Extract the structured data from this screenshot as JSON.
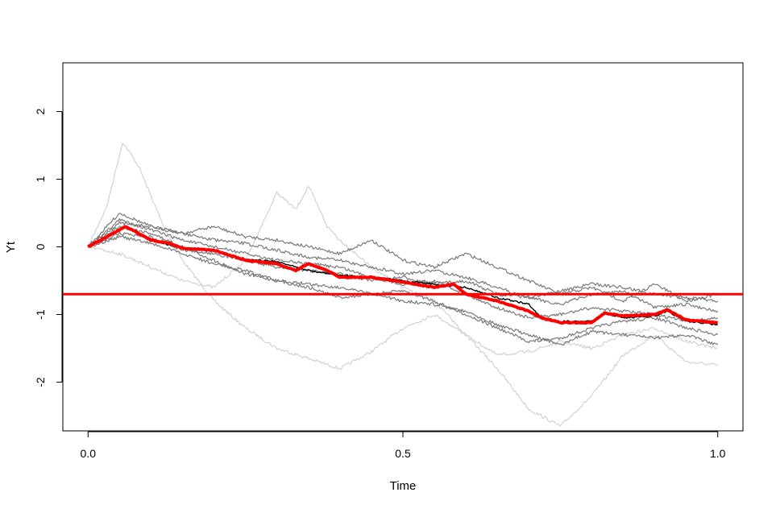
{
  "chart_data": {
    "type": "line",
    "title": "",
    "xlabel": "Time",
    "ylabel": "Yt",
    "xlim": [
      -0.04,
      1.04
    ],
    "ylim": [
      -2.72,
      2.72
    ],
    "x_ticks": [
      0.0,
      0.5,
      1.0
    ],
    "x_tick_labels": [
      "0.0",
      "0.5",
      "1.0"
    ],
    "y_ticks": [
      -2,
      -1,
      0,
      1,
      2
    ],
    "y_tick_labels": [
      "-2",
      "-1",
      "0",
      "1",
      "2"
    ],
    "grid": false,
    "colors": {
      "light_paths": "#d3d3d3",
      "dark_paths": "#7a7a7a",
      "reference_path": "#000000",
      "mean_path": "#ff0000",
      "hline": "#ff0000"
    },
    "hline": -0.7,
    "series": [
      {
        "group": "light",
        "x": [
          0,
          0.03,
          0.055,
          0.08,
          0.12,
          0.15,
          0.2,
          0.25,
          0.3,
          0.35,
          0.4,
          0.45,
          0.5,
          0.55,
          0.6,
          0.65,
          0.7,
          0.75,
          0.8,
          0.85,
          0.9,
          0.95,
          1.0
        ],
        "values": [
          0,
          0.6,
          1.55,
          1.2,
          0.3,
          -0.2,
          -0.8,
          -1.2,
          -1.5,
          -1.65,
          -1.8,
          -1.55,
          -1.2,
          -1.0,
          -1.3,
          -1.8,
          -2.4,
          -2.65,
          -2.2,
          -1.6,
          -1.3,
          -1.7,
          -1.75
        ]
      },
      {
        "group": "light",
        "x": [
          0,
          0.05,
          0.1,
          0.15,
          0.2,
          0.25,
          0.28,
          0.3,
          0.33,
          0.35,
          0.38,
          0.4,
          0.45,
          0.5,
          0.55,
          0.6,
          0.65,
          0.7,
          0.75,
          0.8,
          0.85,
          0.9,
          0.95,
          1.0
        ],
        "values": [
          0,
          -0.1,
          -0.3,
          -0.5,
          -0.6,
          -0.2,
          0.4,
          0.8,
          0.55,
          0.9,
          0.3,
          0.1,
          -0.3,
          -0.6,
          -0.8,
          -1.3,
          -1.6,
          -1.55,
          -1.4,
          -1.5,
          -1.3,
          -1.2,
          -1.4,
          -1.5
        ]
      },
      {
        "group": "dark",
        "x": [
          0,
          0.05,
          0.1,
          0.15,
          0.2,
          0.25,
          0.3,
          0.35,
          0.4,
          0.45,
          0.5,
          0.55,
          0.6,
          0.65,
          0.7,
          0.75,
          0.8,
          0.85,
          0.9,
          0.95,
          1.0
        ],
        "values": [
          0,
          0.5,
          0.3,
          0.2,
          0.3,
          0.15,
          0.1,
          0.0,
          -0.1,
          0.1,
          -0.2,
          -0.3,
          -0.1,
          -0.3,
          -0.5,
          -0.7,
          -0.6,
          -0.8,
          -0.55,
          -0.8,
          -0.7
        ]
      },
      {
        "group": "dark",
        "x": [
          0,
          0.05,
          0.1,
          0.15,
          0.2,
          0.25,
          0.3,
          0.35,
          0.4,
          0.45,
          0.5,
          0.55,
          0.6,
          0.65,
          0.7,
          0.75,
          0.8,
          0.85,
          0.9,
          0.95,
          1.0
        ],
        "values": [
          0,
          0.3,
          0.2,
          0.0,
          -0.2,
          -0.4,
          -0.5,
          -0.6,
          -0.75,
          -0.7,
          -0.65,
          -0.8,
          -1.0,
          -1.2,
          -1.4,
          -1.35,
          -1.2,
          -1.1,
          -1.05,
          -1.2,
          -1.3
        ]
      },
      {
        "group": "dark",
        "x": [
          0,
          0.05,
          0.1,
          0.15,
          0.2,
          0.25,
          0.3,
          0.35,
          0.4,
          0.45,
          0.5,
          0.55,
          0.6,
          0.65,
          0.7,
          0.75,
          0.8,
          0.85,
          0.9,
          0.95,
          1.0
        ],
        "values": [
          0,
          0.4,
          0.25,
          0.1,
          0.0,
          -0.1,
          -0.2,
          -0.25,
          -0.3,
          -0.45,
          -0.55,
          -0.5,
          -0.7,
          -0.9,
          -1.05,
          -1.0,
          -0.9,
          -0.95,
          -1.0,
          -1.1,
          -1.05
        ]
      },
      {
        "group": "dark",
        "x": [
          0,
          0.05,
          0.1,
          0.15,
          0.2,
          0.25,
          0.3,
          0.35,
          0.4,
          0.45,
          0.5,
          0.55,
          0.6,
          0.65,
          0.7,
          0.75,
          0.8,
          0.85,
          0.9,
          0.95,
          1.0
        ],
        "values": [
          0,
          0.2,
          0.15,
          -0.05,
          -0.1,
          -0.2,
          -0.3,
          -0.35,
          -0.4,
          -0.5,
          -0.45,
          -0.55,
          -0.5,
          -0.7,
          -0.75,
          -0.85,
          -0.7,
          -0.65,
          -0.9,
          -0.85,
          -0.95
        ]
      },
      {
        "group": "dark",
        "x": [
          0,
          0.05,
          0.1,
          0.15,
          0.2,
          0.25,
          0.3,
          0.35,
          0.4,
          0.45,
          0.5,
          0.55,
          0.6,
          0.65,
          0.7,
          0.75,
          0.8,
          0.85,
          0.9,
          0.95,
          1.0
        ],
        "values": [
          0,
          0.35,
          0.3,
          0.2,
          0.1,
          0.05,
          -0.05,
          -0.15,
          -0.2,
          -0.3,
          -0.4,
          -0.35,
          -0.45,
          -0.6,
          -0.75,
          -0.65,
          -0.55,
          -0.6,
          -0.7,
          -0.75,
          -0.8
        ]
      },
      {
        "group": "dark",
        "x": [
          0,
          0.05,
          0.1,
          0.15,
          0.2,
          0.25,
          0.3,
          0.35,
          0.4,
          0.45,
          0.5,
          0.55,
          0.6,
          0.65,
          0.7,
          0.75,
          0.8,
          0.85,
          0.9,
          0.95,
          1.0
        ],
        "values": [
          0,
          0.15,
          0.05,
          -0.1,
          -0.25,
          -0.35,
          -0.5,
          -0.55,
          -0.6,
          -0.7,
          -0.8,
          -0.85,
          -0.95,
          -1.15,
          -1.3,
          -1.45,
          -1.25,
          -1.3,
          -1.35,
          -1.3,
          -1.45
        ]
      },
      {
        "group": "reference",
        "x": [
          0,
          0.03,
          0.06,
          0.08,
          0.1,
          0.15,
          0.2,
          0.25,
          0.3,
          0.35,
          0.4,
          0.45,
          0.5,
          0.55,
          0.6,
          0.65,
          0.7,
          0.72,
          0.75,
          0.8,
          0.82,
          0.85,
          0.9,
          0.92,
          0.95,
          1.0
        ],
        "values": [
          0,
          0.15,
          0.3,
          0.2,
          0.1,
          -0.02,
          -0.05,
          -0.18,
          -0.22,
          -0.35,
          -0.42,
          -0.45,
          -0.5,
          -0.55,
          -0.6,
          -0.75,
          -0.85,
          -1.05,
          -1.1,
          -1.1,
          -0.98,
          -1.05,
          -1.02,
          -0.95,
          -1.1,
          -1.15
        ]
      },
      {
        "group": "mean",
        "x": [
          0,
          0.03,
          0.06,
          0.08,
          0.1,
          0.13,
          0.15,
          0.2,
          0.25,
          0.3,
          0.33,
          0.35,
          0.38,
          0.4,
          0.45,
          0.5,
          0.55,
          0.58,
          0.6,
          0.65,
          0.7,
          0.72,
          0.75,
          0.8,
          0.82,
          0.85,
          0.9,
          0.92,
          0.95,
          1.0
        ],
        "values": [
          0,
          0.15,
          0.3,
          0.2,
          0.1,
          0.05,
          -0.02,
          -0.05,
          -0.2,
          -0.25,
          -0.35,
          -0.25,
          -0.35,
          -0.45,
          -0.45,
          -0.52,
          -0.6,
          -0.55,
          -0.7,
          -0.8,
          -0.95,
          -1.05,
          -1.12,
          -1.12,
          -0.98,
          -1.02,
          -1.0,
          -0.93,
          -1.08,
          -1.12
        ]
      }
    ]
  }
}
